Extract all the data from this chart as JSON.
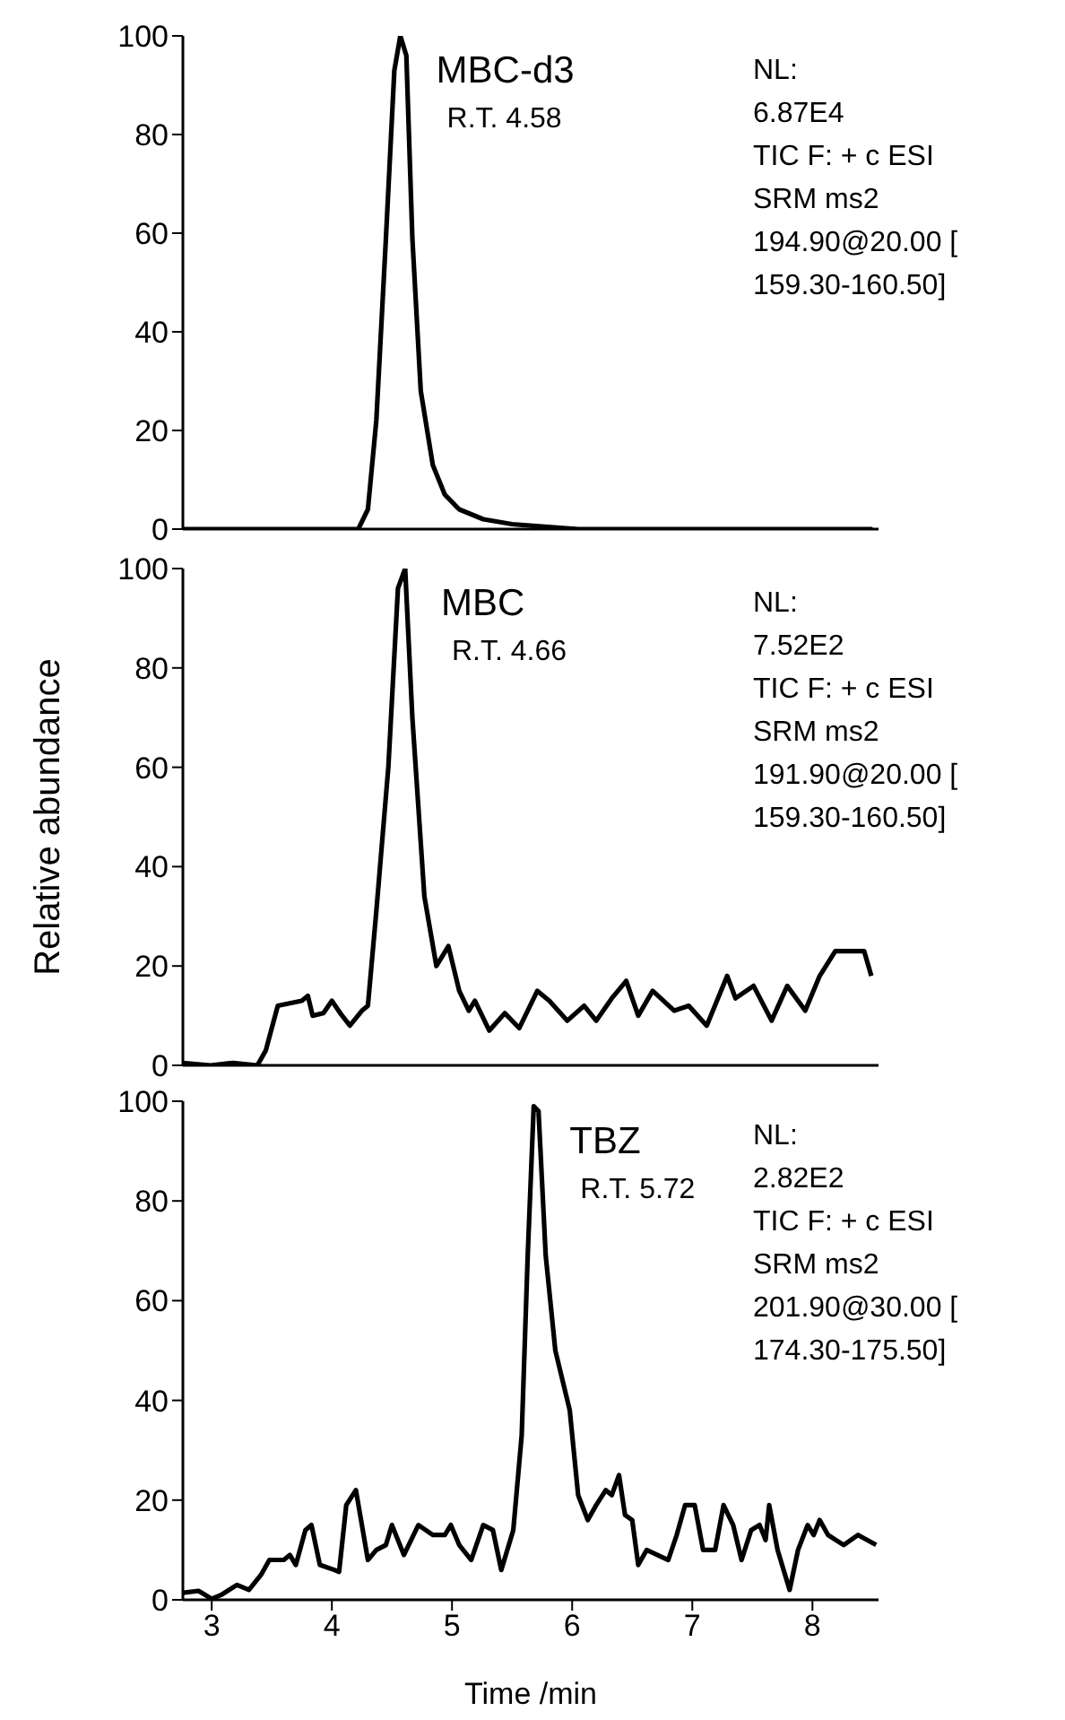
{
  "chart_data": [
    {
      "type": "line",
      "tick_labels": "y",
      "xlim": [
        2.76,
        8.55
      ],
      "ylim": [
        0,
        100
      ],
      "yticks": [
        0,
        20,
        40,
        60,
        80,
        100
      ],
      "marker": "none",
      "line_style": "solid",
      "annotations": [
        "MBC-d3",
        "R.T. 4.58",
        "NL:\n6.87E4\nTIC F: + c ESI\nSRM ms2\n194.90@20.00 [\n159.30-160.50]"
      ],
      "series": [
        {
          "color": "#000000",
          "x": [
            2.76,
            4.22,
            4.3,
            4.37,
            4.45,
            4.52,
            4.57,
            4.62,
            4.67,
            4.74,
            4.84,
            4.94,
            5.06,
            5.26,
            5.5,
            5.7,
            6.05,
            8.5
          ],
          "values": [
            0,
            0,
            4,
            22,
            59,
            93,
            100,
            96,
            59,
            28,
            13,
            7,
            4,
            2,
            1,
            0.6,
            0,
            0
          ]
        }
      ]
    },
    {
      "type": "line",
      "tick_labels": "y",
      "xlim": [
        2.76,
        8.55
      ],
      "ylim": [
        0,
        100
      ],
      "yticks": [
        0,
        20,
        40,
        60,
        80,
        100
      ],
      "ylabel": "Relative abundance",
      "marker": "none",
      "line_style": "solid",
      "annotations": [
        "MBC",
        "R.T. 4.66",
        "NL:\n7.52E2\nTIC F: + c ESI\nSRM ms2\n191.90@20.00 [\n159.30-160.50]"
      ],
      "series": [
        {
          "color": "#000000",
          "x": [
            2.76,
            2.99,
            3.18,
            3.38,
            3.45,
            3.55,
            3.65,
            3.75,
            3.8,
            3.84,
            3.93,
            4.0,
            4.07,
            4.15,
            4.25,
            4.3,
            4.37,
            4.47,
            4.55,
            4.61,
            4.67,
            4.77,
            4.87,
            4.97,
            5.06,
            5.14,
            5.19,
            5.31,
            5.44,
            5.56,
            5.71,
            5.81,
            5.96,
            6.1,
            6.2,
            6.33,
            6.45,
            6.55,
            6.67,
            6.85,
            6.97,
            7.12,
            7.29,
            7.36,
            7.51,
            7.66,
            7.79,
            7.94,
            8.06,
            8.19,
            8.31,
            8.43,
            8.49
          ],
          "values": [
            0.5,
            0,
            0.5,
            0,
            3,
            12,
            12.5,
            13,
            14,
            10,
            10.5,
            13,
            10.5,
            8,
            11,
            12,
            31,
            60,
            96,
            100,
            70,
            34,
            20,
            24,
            15,
            11,
            13,
            7,
            10.5,
            7.5,
            15,
            13,
            9,
            12,
            9,
            13.5,
            17,
            10,
            15,
            11,
            12,
            8,
            18,
            13.5,
            16,
            9,
            16,
            11,
            18,
            23,
            23,
            23,
            18
          ]
        }
      ]
    },
    {
      "type": "line",
      "xlim": [
        2.76,
        8.55
      ],
      "xticks": [
        3,
        4,
        5,
        6,
        7,
        8
      ],
      "xlabel": "Time /min",
      "ylim": [
        0,
        100
      ],
      "yticks": [
        0,
        20,
        40,
        60,
        80,
        100
      ],
      "marker": "none",
      "line_style": "solid",
      "annotations": [
        "TBZ",
        "R.T. 5.72",
        "NL:\n2.82E2\nTIC F: + c ESI\nSRM ms2\n201.90@30.00 [\n174.30-175.50]"
      ],
      "series": [
        {
          "color": "#000000",
          "x": [
            2.76,
            2.89,
            3.0,
            3.08,
            3.21,
            3.31,
            3.41,
            3.48,
            3.6,
            3.65,
            3.7,
            3.78,
            3.83,
            3.9,
            4.02,
            4.06,
            4.12,
            4.2,
            4.3,
            4.37,
            4.45,
            4.5,
            4.6,
            4.72,
            4.84,
            4.94,
            4.99,
            5.06,
            5.16,
            5.26,
            5.34,
            5.41,
            5.51,
            5.58,
            5.63,
            5.68,
            5.72,
            5.78,
            5.86,
            5.98,
            6.05,
            6.13,
            6.2,
            6.28,
            6.33,
            6.39,
            6.44,
            6.5,
            6.55,
            6.62,
            6.8,
            6.87,
            6.94,
            7.02,
            7.09,
            7.19,
            7.26,
            7.34,
            7.41,
            7.49,
            7.56,
            7.61,
            7.64,
            7.71,
            7.81,
            7.88,
            7.96,
            8.01,
            8.06,
            8.13,
            8.26,
            8.38,
            8.53
          ],
          "values": [
            1.4,
            1.8,
            0.2,
            1,
            3,
            2,
            5,
            8,
            8,
            9,
            7,
            14,
            15,
            7,
            6,
            5.6,
            19,
            22,
            8,
            10,
            11,
            15,
            9,
            15,
            13,
            13,
            15,
            11,
            8,
            15,
            14,
            6,
            14,
            33,
            69,
            99,
            98,
            69,
            50,
            38,
            21,
            16,
            19,
            22,
            21,
            25,
            17,
            16,
            7,
            10,
            8,
            13,
            19,
            19,
            10,
            10,
            19,
            15,
            8,
            14,
            15,
            12,
            19,
            10,
            2,
            10,
            15,
            13,
            16,
            13,
            11,
            13,
            11
          ]
        }
      ]
    }
  ]
}
